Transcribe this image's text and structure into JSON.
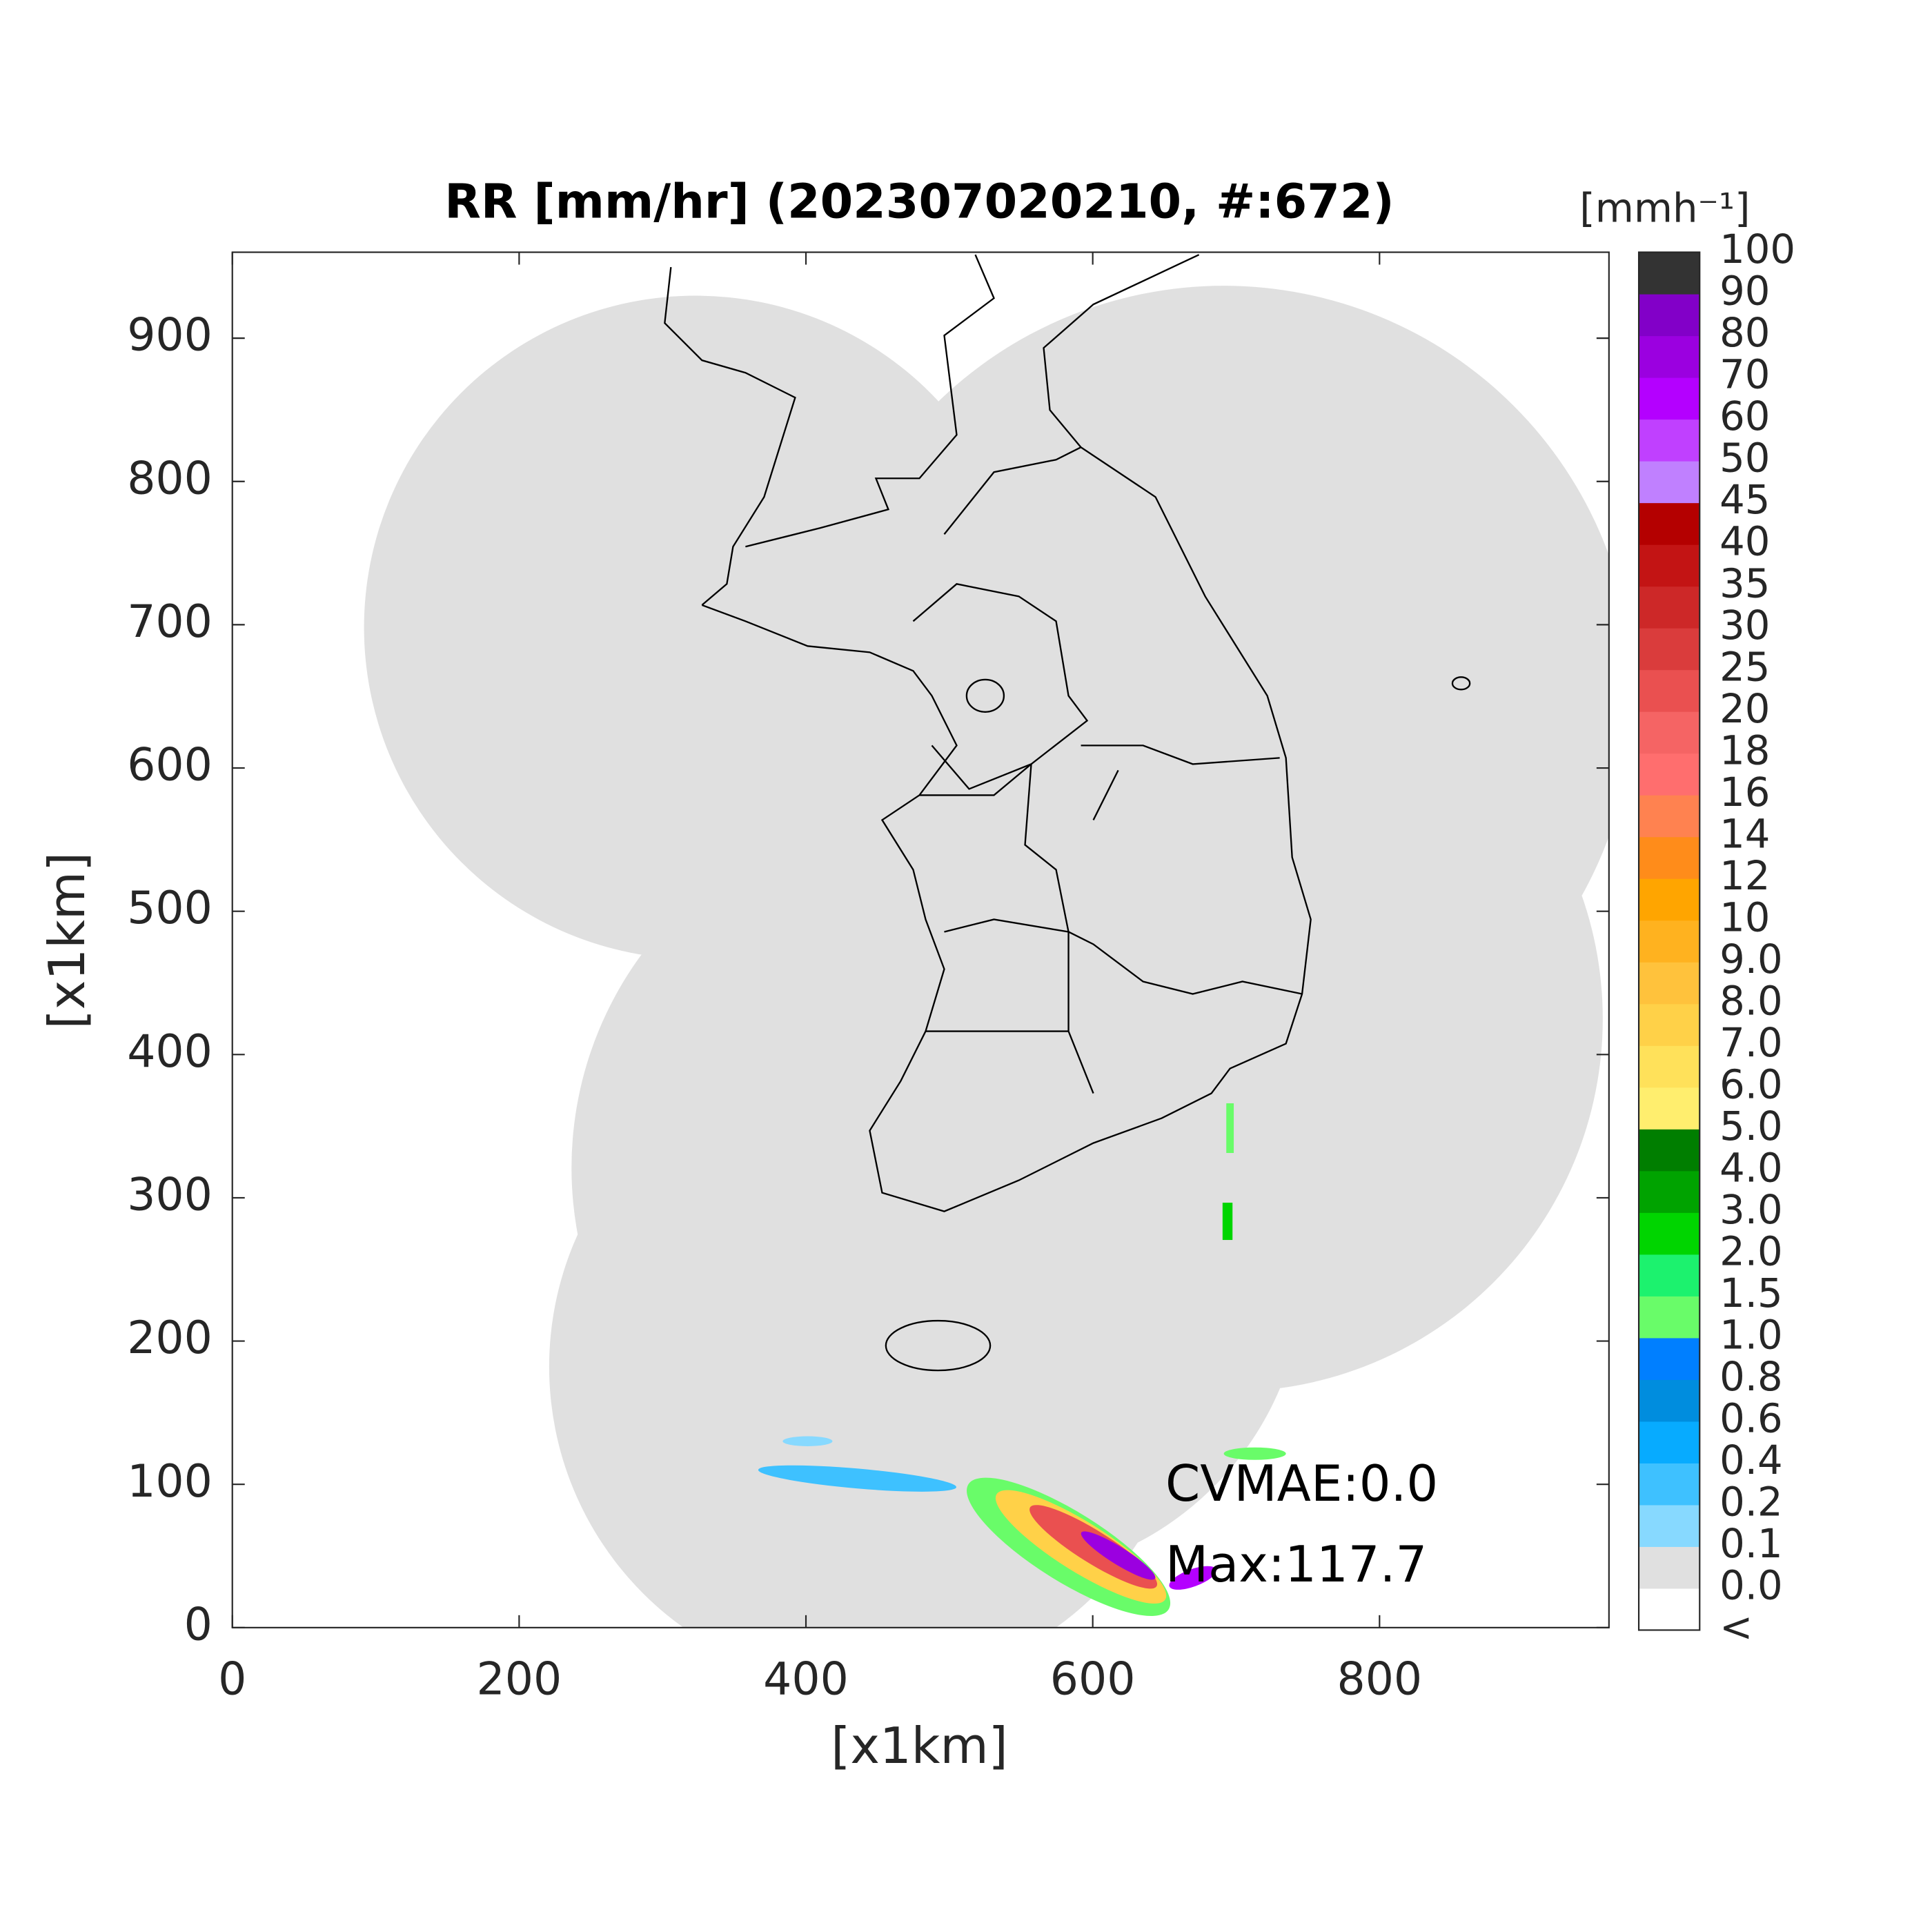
{
  "chart_data": {
    "type": "heatmap",
    "title": "RR [mm/hr] (202307020210, #:672)",
    "xlabel": "[x1km]",
    "ylabel": "[x1km]",
    "xlim": [
      0,
      960
    ],
    "ylim": [
      0,
      960
    ],
    "xticks": [
      0,
      200,
      400,
      600,
      800
    ],
    "yticks": [
      0,
      100,
      200,
      300,
      400,
      500,
      600,
      700,
      800,
      900
    ],
    "annotations": [
      "CVMAE:0.0",
      "Max:117.7"
    ],
    "colorbar": {
      "label": "[mmh⁻¹]",
      "labels": [
        "<",
        "0.0",
        "0.1",
        "0.2",
        "0.4",
        "0.6",
        "0.8",
        "1.0",
        "1.5",
        "2.0",
        "3.0",
        "4.0",
        "5.0",
        "6.0",
        "7.0",
        "8.0",
        "9.0",
        "10",
        "12",
        "14",
        "16",
        "18",
        "20",
        "25",
        "30",
        "35",
        "40",
        "45",
        "50",
        "60",
        "70",
        "80",
        "90",
        "100"
      ],
      "colors": [
        "#ffffff",
        "#e0e0e0",
        "#87d9ff",
        "#3ec1ff",
        "#07abff",
        "#008dde",
        "#007fff",
        "#69fc69",
        "#1cf26e",
        "#00d500",
        "#00a300",
        "#007e00",
        "#ffee6e",
        "#ffe15a",
        "#ffd148",
        "#ffc23c",
        "#ffb21f",
        "#ffa500",
        "#ff8c1a",
        "#ff8250",
        "#ff6e6e",
        "#f56464",
        "#ea5050",
        "#da3c3c",
        "#cd2828",
        "#c31414",
        "#b40000",
        "#c080ff",
        "#c040ff",
        "#b400ff",
        "#9b00e0",
        "#8200c8",
        "#333333"
      ]
    }
  }
}
